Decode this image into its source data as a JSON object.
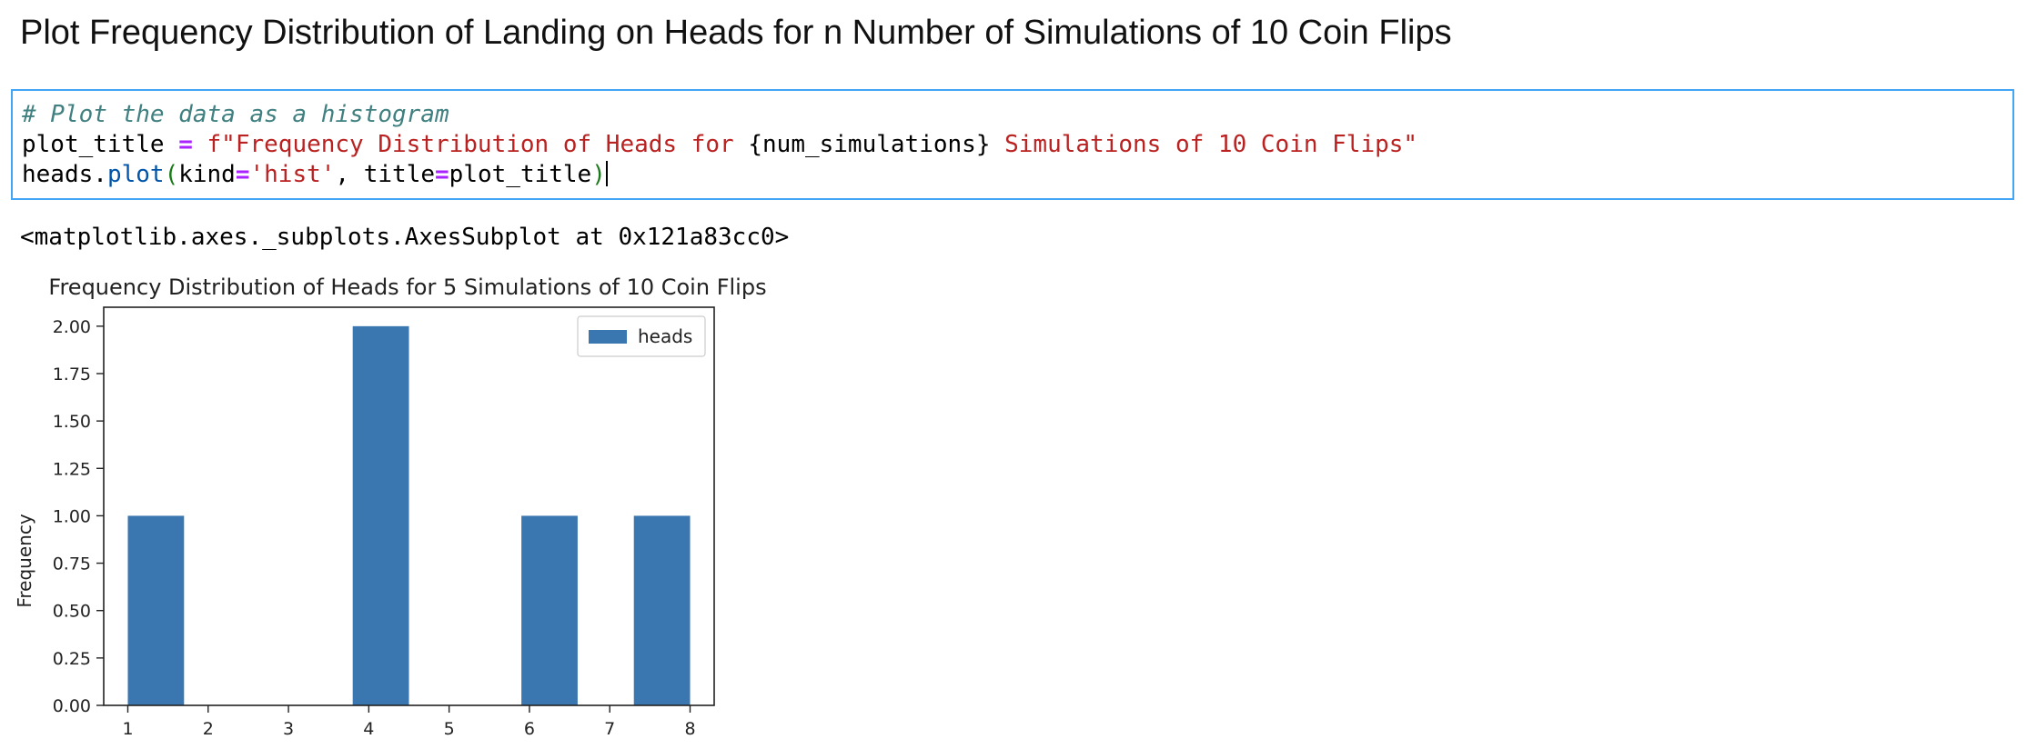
{
  "heading": {
    "title": "Plot Frequency Distribution of Landing on Heads for n Number of Simulations of 10 Coin Flips"
  },
  "code_cell": {
    "line1_comment": "# Plot the data as a histogram",
    "line2_var": "plot_title",
    "line2_eq": " = ",
    "line2_fprefix": "f",
    "line2_str_a": "\"Frequency Distribution of Heads for ",
    "line2_interp": "{num_simulations}",
    "line2_str_b": " Simulations of 10 Coin Flips\"",
    "line3_obj": "heads",
    "line3_dot": ".",
    "line3_method": "plot",
    "line3_open": "(",
    "line3_kw1": "kind",
    "line3_eq1": "=",
    "line3_val1": "'hist'",
    "line3_sep": ", ",
    "line3_kw2": "title",
    "line3_eq2": "=",
    "line3_val2": "plot_title",
    "line3_close": ")"
  },
  "output": {
    "repr": "<matplotlib.axes._subplots.AxesSubplot at 0x121a83cc0>"
  },
  "colors": {
    "bar": "#3a76af",
    "cell_border": "#42a5f5"
  },
  "chart_data": {
    "type": "bar",
    "title": "Frequency Distribution of Heads for 5 Simulations of 10 Coin Flips",
    "xlabel": "",
    "ylabel": "Frequency",
    "xlim": [
      0.7,
      8.3
    ],
    "ylim": [
      0,
      2.1
    ],
    "x_ticks": [
      1,
      2,
      3,
      4,
      5,
      6,
      7,
      8
    ],
    "y_ticks": [
      "0.00",
      "0.25",
      "0.50",
      "0.75",
      "1.00",
      "1.25",
      "1.50",
      "1.75",
      "2.00"
    ],
    "bins": [
      {
        "start": 1.0,
        "end": 1.7,
        "value": 1
      },
      {
        "start": 1.7,
        "end": 2.4,
        "value": 0
      },
      {
        "start": 2.4,
        "end": 3.1,
        "value": 0
      },
      {
        "start": 3.1,
        "end": 3.8,
        "value": 0
      },
      {
        "start": 3.8,
        "end": 4.5,
        "value": 2
      },
      {
        "start": 4.5,
        "end": 5.2,
        "value": 0
      },
      {
        "start": 5.2,
        "end": 5.9,
        "value": 0
      },
      {
        "start": 5.9,
        "end": 6.6,
        "value": 1
      },
      {
        "start": 6.6,
        "end": 7.3,
        "value": 0
      },
      {
        "start": 7.3,
        "end": 8.0,
        "value": 1
      }
    ],
    "legend": {
      "entries": [
        "heads"
      ],
      "position": "upper-right"
    },
    "grid": false
  }
}
